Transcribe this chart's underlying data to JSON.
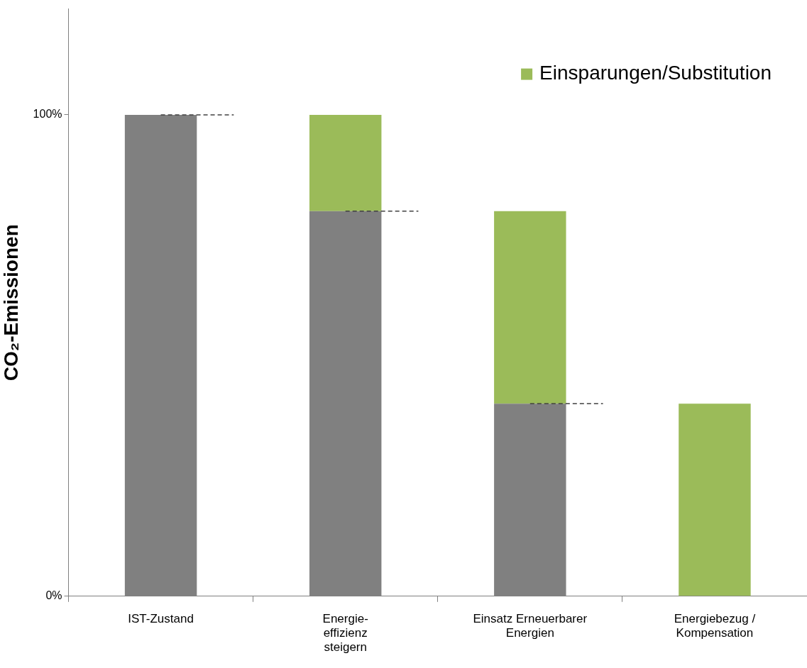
{
  "chart_data": {
    "type": "bar",
    "stacked": true,
    "ylabel": "CO₂-Emissionen",
    "categories": [
      "IST-Zustand",
      "Energie-\neffizienz\nsteigern",
      "Einsatz Erneuerbarer\nEnergien",
      "Energiebezug /\nKompensation"
    ],
    "series": [
      {
        "color": "#808080",
        "values": [
          100,
          80,
          40,
          null
        ]
      },
      {
        "name": "Einsparungen/Substitution",
        "color": "#9bbb59",
        "values": [
          null,
          20,
          40,
          40
        ]
      }
    ],
    "ylim": [
      0,
      122
    ],
    "yticks": [
      {
        "value": 0,
        "label": "0%"
      },
      {
        "value": 100,
        "label": "100%"
      }
    ],
    "ref_lines": [
      {
        "axis": "y",
        "value": 100,
        "color": "#404040",
        "line_style": "dashed"
      },
      {
        "axis": "y",
        "value": 80,
        "color": "#404040",
        "line_style": "dashed"
      },
      {
        "axis": "y",
        "value": 40,
        "color": "#404040",
        "line_style": "dashed"
      }
    ],
    "grid": false,
    "legend": "top right"
  }
}
